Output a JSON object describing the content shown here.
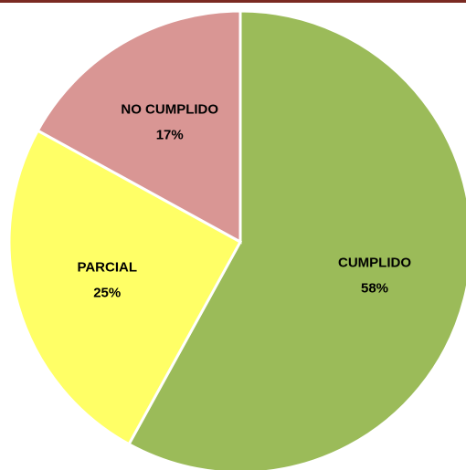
{
  "chart_data": {
    "type": "pie",
    "categories": [
      "CUMPLIDO",
      "PARCIAL",
      "NO CUMPLIDO"
    ],
    "values": [
      58,
      25,
      17
    ],
    "value_labels": [
      "58%",
      "25%",
      "17%"
    ],
    "colors": [
      "#9bbb59",
      "#ffff66",
      "#d99694"
    ]
  }
}
